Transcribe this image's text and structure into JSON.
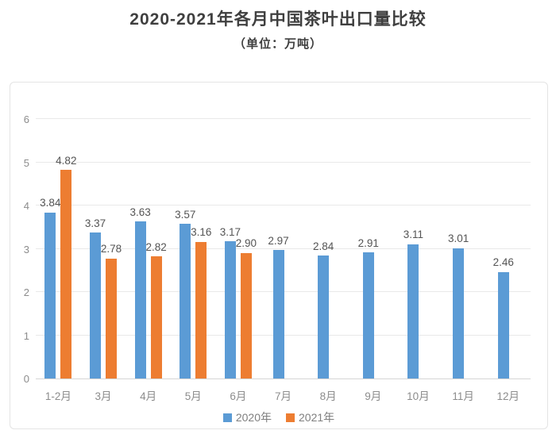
{
  "header": {
    "title": "2020-2021年各月中国茶叶出口量比较",
    "subtitle": "（单位：万吨）"
  },
  "colors": {
    "series_2020": "#5B9BD5",
    "series_2021": "#ED7D31",
    "gridline": "#E9E9E9",
    "axis_line": "#D5D5D5",
    "axis_text": "#8C8C8C",
    "data_label_text": "#545454",
    "title_text": "#3F3F3F",
    "card_border": "#E4E4E4"
  },
  "chart_data": {
    "type": "bar",
    "title": "2020-2021年各月中国茶叶出口量比较",
    "unit_label": "（单位：万吨）",
    "categories": [
      "1-2月",
      "3月",
      "4月",
      "5月",
      "6月",
      "7月",
      "8月",
      "9月",
      "10月",
      "11月",
      "12月"
    ],
    "series": [
      {
        "name": "2020年",
        "color": "#5B9BD5",
        "values": [
          3.84,
          3.37,
          3.63,
          3.57,
          3.17,
          2.97,
          2.84,
          2.91,
          3.11,
          3.01,
          2.46
        ]
      },
      {
        "name": "2021年",
        "color": "#ED7D31",
        "values": [
          4.82,
          2.78,
          2.82,
          3.16,
          2.9,
          null,
          null,
          null,
          null,
          null,
          null
        ]
      }
    ],
    "ylim": [
      0,
      6
    ],
    "yticks": [
      0,
      1,
      2,
      3,
      4,
      5,
      6
    ],
    "grid": true,
    "data_labels": true,
    "legend_position": "bottom"
  },
  "legend": {
    "items": [
      {
        "label": "2020年",
        "color": "#5B9BD5"
      },
      {
        "label": "2021年",
        "color": "#ED7D31"
      }
    ]
  }
}
